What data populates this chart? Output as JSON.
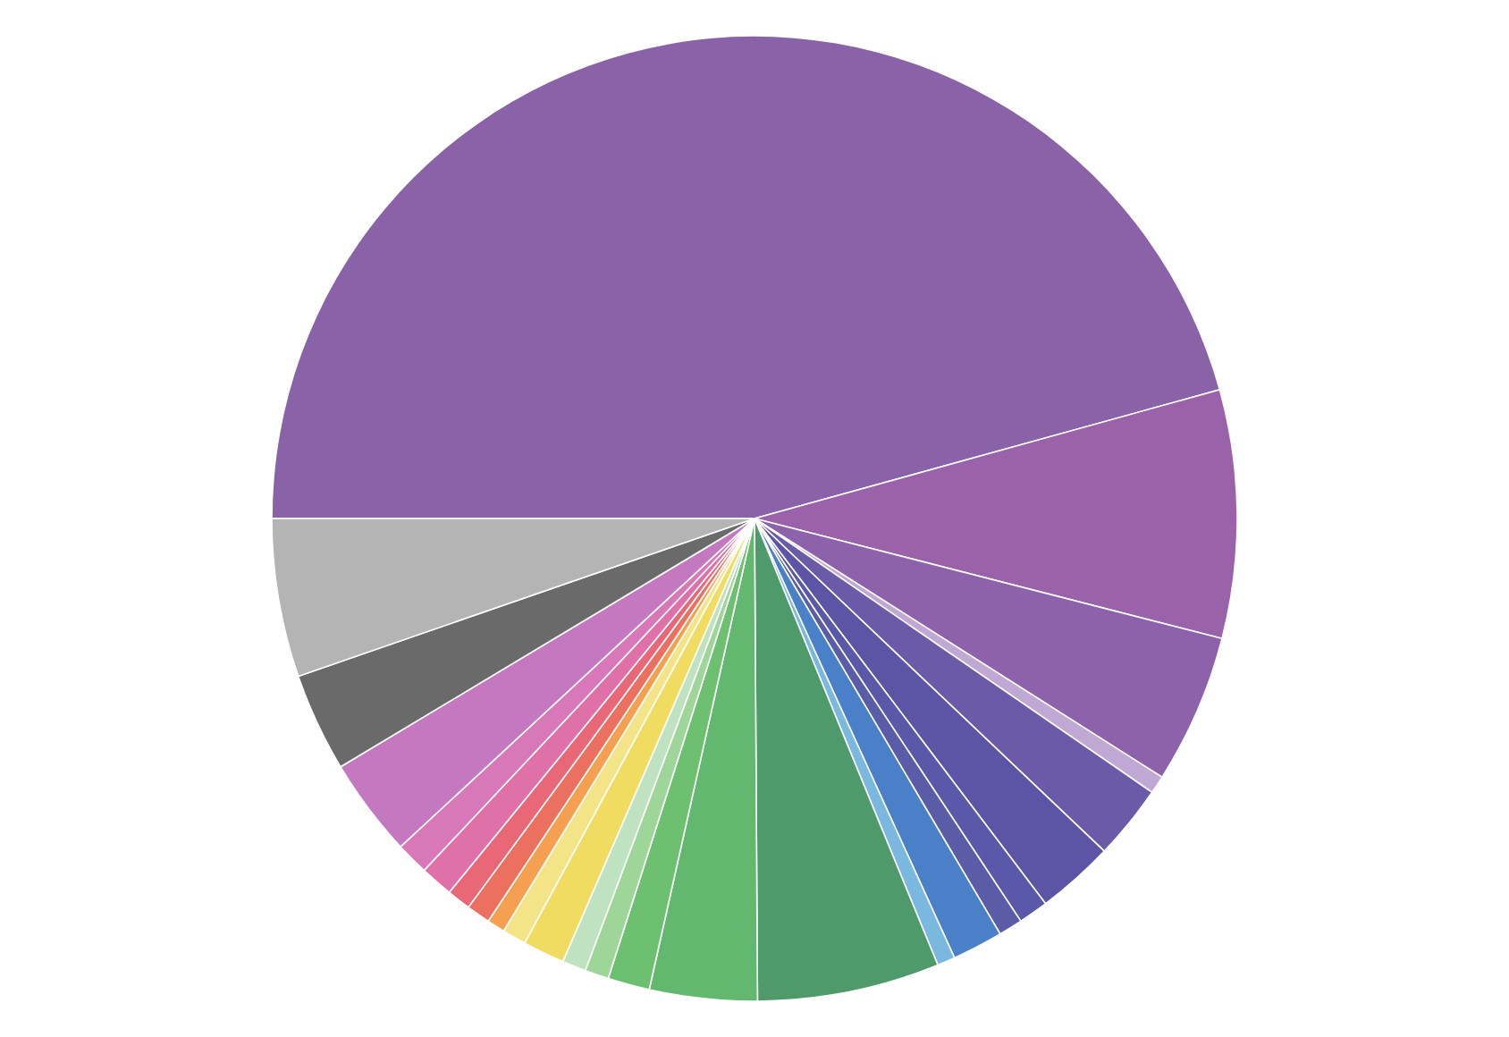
{
  "chart_data": {
    "type": "pie",
    "categories": [
      null,
      null,
      null,
      null,
      null,
      null,
      null,
      null,
      null,
      null,
      null,
      null,
      null,
      null,
      null,
      null,
      null,
      null,
      null,
      null,
      null,
      null,
      null,
      null,
      null
    ],
    "values": [
      45.7,
      8.3,
      5,
      0.6,
      2.5,
      2.6,
      1,
      0.8,
      1.7,
      0.6,
      6.1,
      3.6,
      1.4,
      0.8,
      0.8,
      1.4,
      0.8,
      0.6,
      0.8,
      0.8,
      1.1,
      1.1,
      3.3,
      3.3,
      5.3
    ],
    "colors": [
      "#8a62a8",
      "#9a62a8",
      "#8e62aa",
      "#c0a8d4",
      "#6a5aa8",
      "#5c54a4",
      "#5a58a8",
      "#5a5ca8",
      "#4a80c8",
      "#7ab8e0",
      "#4e9a6a",
      "#62b86e",
      "#6cc070",
      "#9ed69a",
      "#bfe2c0",
      "#f0dc60",
      "#f4e488",
      "#f4a050",
      "#ec7060",
      "#e86878",
      "#e070a8",
      "#d878b8",
      "#c478c0",
      "#6a6a6a",
      "#b4b4b4"
    ]
  }
}
